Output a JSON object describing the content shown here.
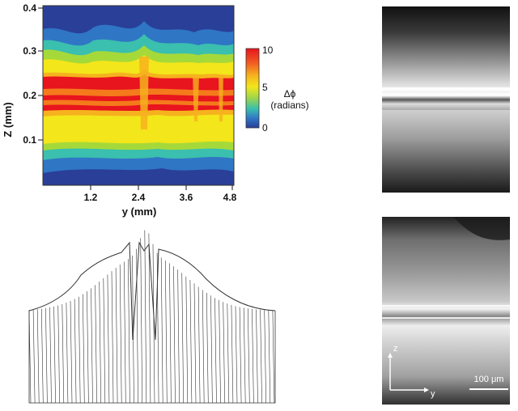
{
  "contour_panel": {
    "x_axis": {
      "label": "y (mm)",
      "ticks": [
        "1.2",
        "2.4",
        "3.6",
        "4.8"
      ]
    },
    "y_axis": {
      "label": "Z (mm)",
      "ticks": [
        "0.1",
        "0.2",
        "0.3",
        "0.4"
      ]
    },
    "colorbar": {
      "symbol": "Δϕ",
      "unit": "(radians)",
      "ticks": [
        "10",
        "5",
        "0"
      ],
      "colors": [
        "#e8141e",
        "#f47a1c",
        "#f3e61a",
        "#a5d93a",
        "#3bbfae",
        "#2f76c5",
        "#2a3f98"
      ]
    }
  },
  "micrograph_bottom": {
    "axis_z": "z",
    "axis_y": "y",
    "scale_bar": "100 μm"
  }
}
